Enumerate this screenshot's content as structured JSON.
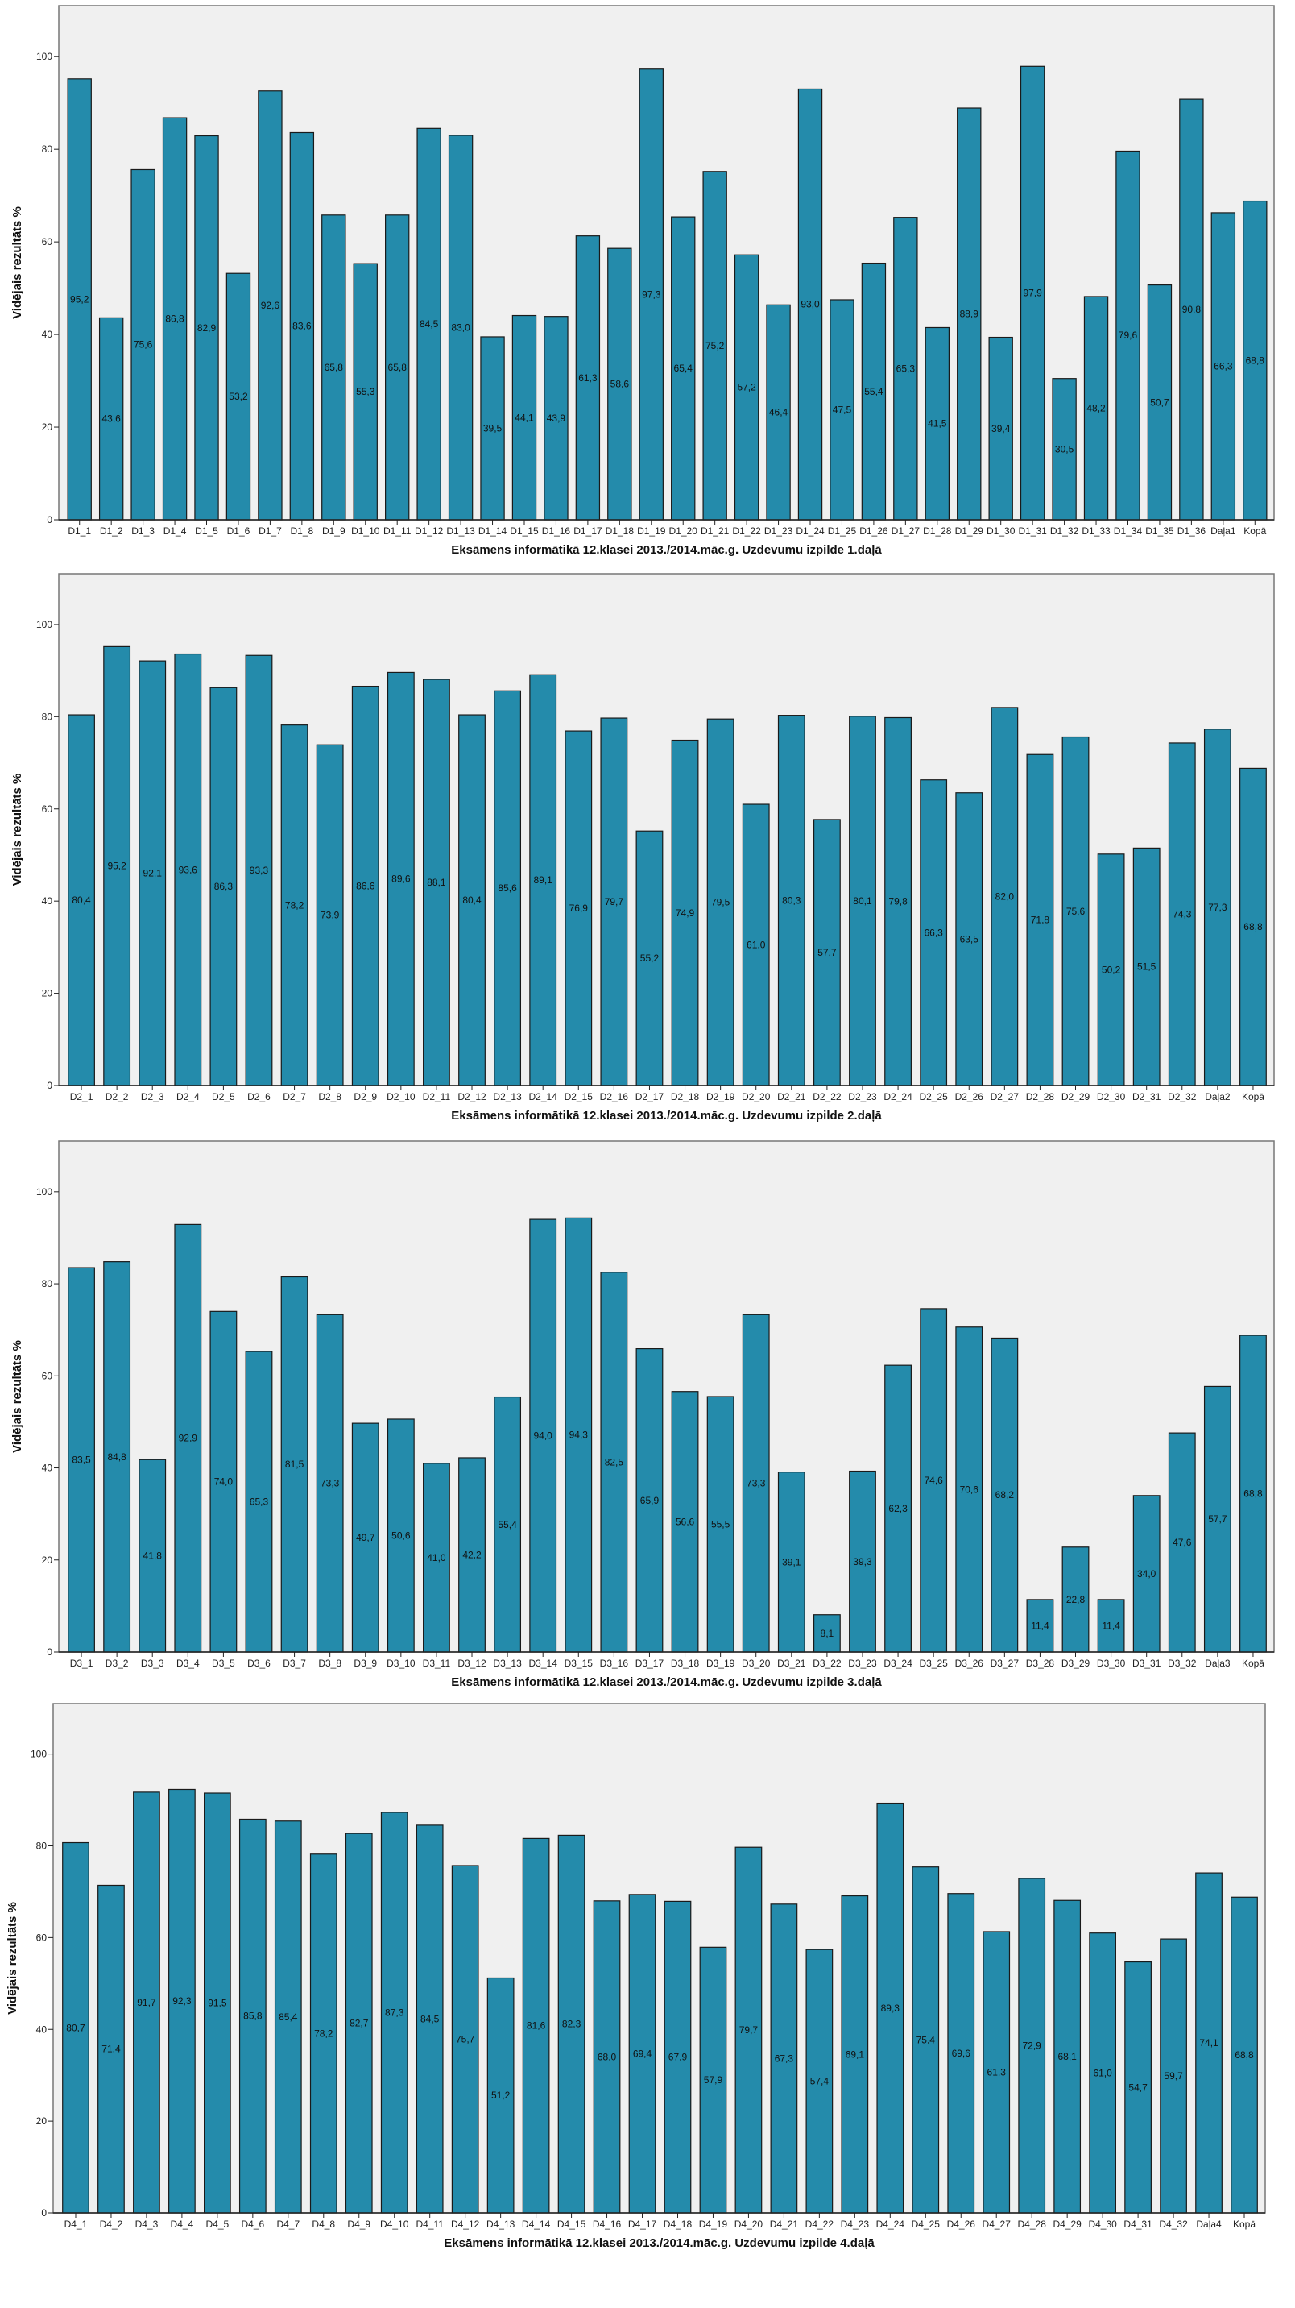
{
  "chart_data": [
    {
      "type": "bar",
      "xlabel": "Eksāmens informātikā 12.klasei 2013./2014.māc.g. Uzdevumu izpilde 1.daļā",
      "ylabel": "Vidējais rezultāts %",
      "ylim": [
        0,
        111
      ],
      "yticks": [
        0,
        20,
        40,
        60,
        80,
        100
      ],
      "grid": false,
      "bar_color": "#248BAB",
      "plot_background": "#F0F0F0",
      "categories": [
        "D1_1",
        "D1_2",
        "D1_3",
        "D1_4",
        "D1_5",
        "D1_6",
        "D1_7",
        "D1_8",
        "D1_9",
        "D1_10",
        "D1_11",
        "D1_12",
        "D1_13",
        "D1_14",
        "D1_15",
        "D1_16",
        "D1_17",
        "D1_18",
        "D1_19",
        "D1_20",
        "D1_21",
        "D1_22",
        "D1_23",
        "D1_24",
        "D1_25",
        "D1_26",
        "D1_27",
        "D1_28",
        "D1_29",
        "D1_30",
        "D1_31",
        "D1_32",
        "D1_33",
        "D1_34",
        "D1_35",
        "D1_36",
        "Daļa1",
        "Kopā"
      ],
      "values": [
        95.2,
        43.6,
        75.6,
        86.8,
        82.9,
        53.2,
        92.6,
        83.6,
        65.8,
        55.3,
        65.8,
        84.5,
        83.0,
        39.5,
        44.1,
        43.9,
        61.3,
        58.6,
        97.3,
        65.4,
        75.2,
        57.2,
        46.4,
        93.0,
        47.5,
        55.4,
        65.3,
        41.5,
        88.9,
        39.4,
        97.9,
        30.5,
        48.2,
        79.6,
        50.7,
        90.8,
        66.3,
        68.8
      ]
    },
    {
      "type": "bar",
      "xlabel": "Eksāmens informātikā 12.klasei 2013./2014.māc.g. Uzdevumu izpilde 2.daļā",
      "ylabel": "Vidējais rezultāts %",
      "ylim": [
        0,
        111
      ],
      "yticks": [
        0,
        20,
        40,
        60,
        80,
        100
      ],
      "grid": false,
      "bar_color": "#248BAB",
      "plot_background": "#F0F0F0",
      "categories": [
        "D2_1",
        "D2_2",
        "D2_3",
        "D2_4",
        "D2_5",
        "D2_6",
        "D2_7",
        "D2_8",
        "D2_9",
        "D2_10",
        "D2_11",
        "D2_12",
        "D2_13",
        "D2_14",
        "D2_15",
        "D2_16",
        "D2_17",
        "D2_18",
        "D2_19",
        "D2_20",
        "D2_21",
        "D2_22",
        "D2_23",
        "D2_24",
        "D2_25",
        "D2_26",
        "D2_27",
        "D2_28",
        "D2_29",
        "D2_30",
        "D2_31",
        "D2_32",
        "Daļa2",
        "Kopā"
      ],
      "values": [
        80.4,
        95.2,
        92.1,
        93.6,
        86.3,
        93.3,
        78.2,
        73.9,
        86.6,
        89.6,
        88.1,
        80.4,
        85.6,
        89.1,
        76.9,
        79.7,
        55.2,
        74.9,
        79.5,
        61.0,
        80.3,
        57.7,
        80.1,
        79.8,
        66.3,
        63.5,
        82.0,
        71.8,
        75.6,
        50.2,
        51.5,
        74.3,
        77.3,
        68.8
      ]
    },
    {
      "type": "bar",
      "xlabel": "Eksāmens informātikā 12.klasei 2013./2014.māc.g. Uzdevumu izpilde 3.daļā",
      "ylabel": "Vidējais rezultāts %",
      "ylim": [
        0,
        111
      ],
      "yticks": [
        0,
        20,
        40,
        60,
        80,
        100
      ],
      "grid": false,
      "bar_color": "#248BAB",
      "plot_background": "#F0F0F0",
      "categories": [
        "D3_1",
        "D3_2",
        "D3_3",
        "D3_4",
        "D3_5",
        "D3_6",
        "D3_7",
        "D3_8",
        "D3_9",
        "D3_10",
        "D3_11",
        "D3_12",
        "D3_13",
        "D3_14",
        "D3_15",
        "D3_16",
        "D3_17",
        "D3_18",
        "D3_19",
        "D3_20",
        "D3_21",
        "D3_22",
        "D3_23",
        "D3_24",
        "D3_25",
        "D3_26",
        "D3_27",
        "D3_28",
        "D3_29",
        "D3_30",
        "D3_31",
        "D3_32",
        "Daļa3",
        "Kopā"
      ],
      "values": [
        83.5,
        84.8,
        41.8,
        92.9,
        74.0,
        65.3,
        81.5,
        73.3,
        49.7,
        50.6,
        41.0,
        42.2,
        55.4,
        94.0,
        94.3,
        82.5,
        65.9,
        56.6,
        55.5,
        73.3,
        39.1,
        8.1,
        39.3,
        62.3,
        74.6,
        70.6,
        68.2,
        11.4,
        22.8,
        11.4,
        34.0,
        47.6,
        57.7,
        68.8
      ]
    },
    {
      "type": "bar",
      "xlabel": "Eksāmens informātikā 12.klasei 2013./2014.māc.g. Uzdevumu izpilde 4.daļā",
      "ylabel": "Vidējais rezultāts %",
      "ylim": [
        0,
        111
      ],
      "yticks": [
        0,
        20,
        40,
        60,
        80,
        100
      ],
      "grid": false,
      "bar_color": "#248BAB",
      "plot_background": "#F0F0F0",
      "categories": [
        "D4_1",
        "D4_2",
        "D4_3",
        "D4_4",
        "D4_5",
        "D4_6",
        "D4_7",
        "D4_8",
        "D4_9",
        "D4_10",
        "D4_11",
        "D4_12",
        "D4_13",
        "D4_14",
        "D4_15",
        "D4_16",
        "D4_17",
        "D4_18",
        "D4_19",
        "D4_20",
        "D4_21",
        "D4_22",
        "D4_23",
        "D4_24",
        "D4_25",
        "D4_26",
        "D4_27",
        "D4_28",
        "D4_29",
        "D4_30",
        "D4_31",
        "D4_32",
        "Daļa4",
        "Kopā"
      ],
      "values": [
        80.7,
        71.4,
        91.7,
        92.3,
        91.5,
        85.8,
        85.4,
        78.2,
        82.7,
        87.3,
        84.5,
        75.7,
        51.2,
        81.6,
        82.3,
        68.0,
        69.4,
        67.9,
        57.9,
        79.7,
        67.3,
        57.4,
        69.1,
        89.3,
        75.4,
        69.6,
        61.3,
        72.9,
        68.1,
        61.0,
        54.7,
        59.7,
        74.1,
        68.8
      ]
    }
  ]
}
